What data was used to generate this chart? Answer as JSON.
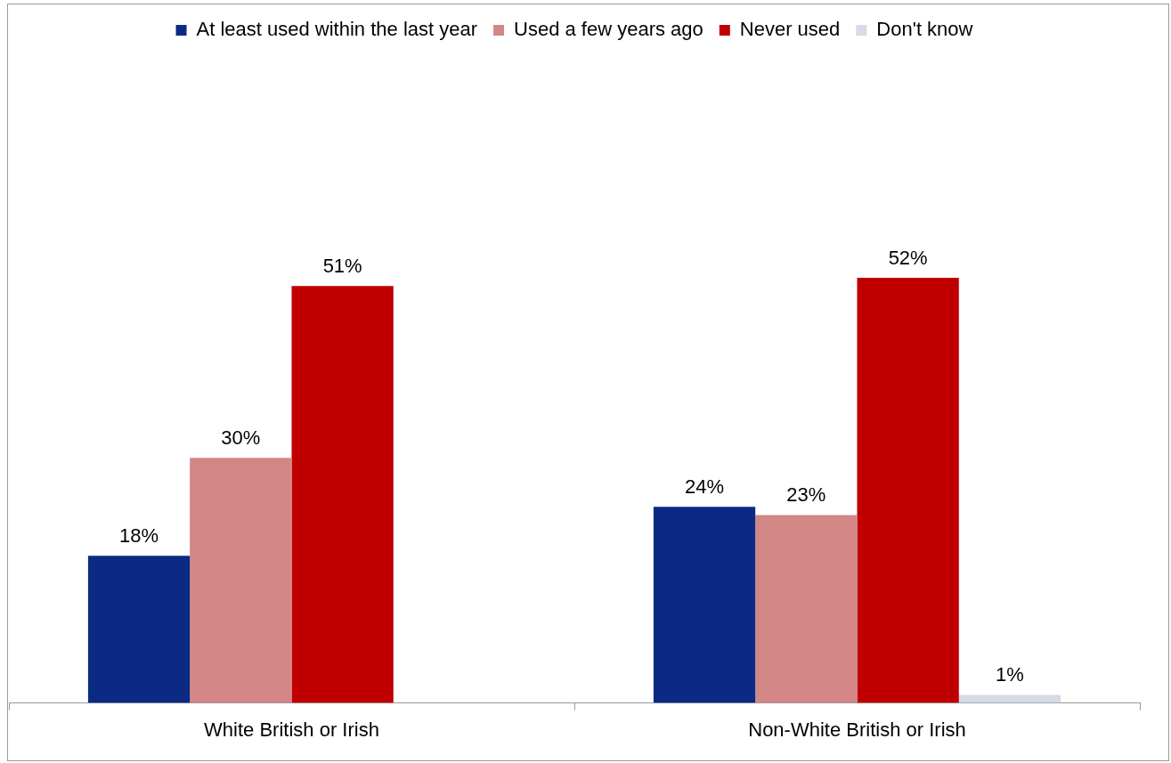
{
  "chart_data": {
    "type": "bar",
    "categories": [
      "White British or Irish",
      "Non-White British or Irish"
    ],
    "series": [
      {
        "name": "At least used within the last year",
        "color": "#0b2a84",
        "values": [
          18,
          24
        ],
        "value_labels": [
          "18%",
          "24%"
        ]
      },
      {
        "name": "Used a few years ago",
        "color": "#d38686",
        "values": [
          30,
          23
        ],
        "value_labels": [
          "30%",
          "23%"
        ]
      },
      {
        "name": "Never used",
        "color": "#c00000",
        "values": [
          51,
          52
        ],
        "value_labels": [
          "51%",
          "52%"
        ]
      },
      {
        "name": "Don't know",
        "color": "#d6dce5",
        "values": [
          null,
          1
        ],
        "value_labels": [
          null,
          "1%"
        ]
      }
    ],
    "legend": "top",
    "grid": false
  }
}
